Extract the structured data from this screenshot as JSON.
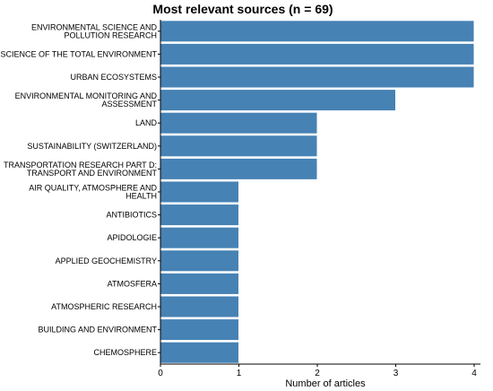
{
  "chart_data": {
    "type": "bar",
    "orientation": "horizontal",
    "title": "Most relevant sources (n = 69)",
    "xlabel": "Number of articles",
    "ylabel": "",
    "xlim": [
      0,
      4
    ],
    "xticks": [
      "0",
      "1",
      "2",
      "3",
      "4"
    ],
    "grid": false,
    "bar_color": "#4682b4",
    "categories": [
      [
        "ENVIRONMENTAL SCIENCE AND",
        "POLLUTION RESEARCH"
      ],
      [
        "SCIENCE OF THE TOTAL ENVIRONMENT"
      ],
      [
        "URBAN ECOSYSTEMS"
      ],
      [
        "ENVIRONMENTAL MONITORING AND",
        "ASSESSMENT"
      ],
      [
        "LAND"
      ],
      [
        "SUSTAINABILITY (SWITZERLAND)"
      ],
      [
        "TRANSPORTATION RESEARCH PART D:",
        "TRANSPORT AND ENVIRONMENT"
      ],
      [
        "AIR QUALITY, ATMOSPHERE AND",
        "HEALTH"
      ],
      [
        "ANTIBIOTICS"
      ],
      [
        "APIDOLOGIE"
      ],
      [
        "APPLIED GEOCHEMISTRY"
      ],
      [
        "ATMOSFERA"
      ],
      [
        "ATMOSPHERIC RESEARCH"
      ],
      [
        "BUILDING AND ENVIRONMENT"
      ],
      [
        "CHEMOSPHERE"
      ]
    ],
    "values": [
      4,
      4,
      4,
      3,
      2,
      2,
      2,
      1,
      1,
      1,
      1,
      1,
      1,
      1,
      1
    ]
  }
}
